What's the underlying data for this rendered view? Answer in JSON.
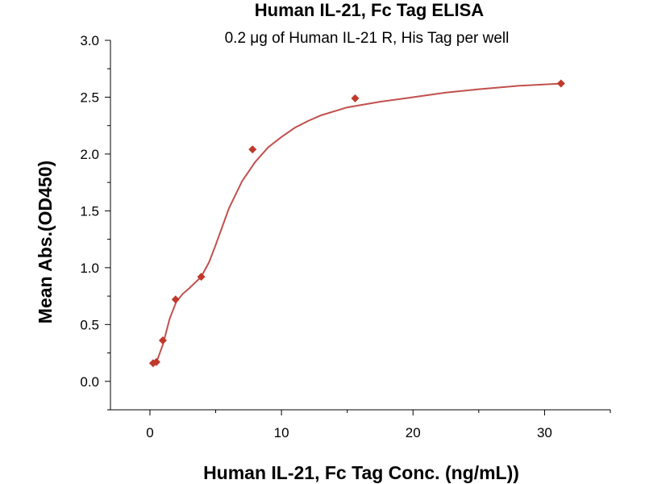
{
  "chart_data": {
    "type": "scatter",
    "title": "Human IL-21, Fc Tag ELISA",
    "subtitle": "0.2 μg of Human IL-21 R, His Tag per well",
    "xlabel": "Human IL-21, Fc Tag Conc. (ng/mL))",
    "ylabel": "Mean Abs.(OD450)",
    "xlim": [
      -3,
      35
    ],
    "ylim": [
      -0.25,
      3.0
    ],
    "x_ticks": [
      0,
      10,
      20,
      30
    ],
    "y_ticks": [
      0.0,
      0.5,
      1.0,
      1.5,
      2.0,
      2.5,
      3.0
    ],
    "x_tick_labels": [
      "0",
      "10",
      "20",
      "30"
    ],
    "y_tick_labels": [
      "0.0",
      "0.5",
      "1.0",
      "1.5",
      "2.0",
      "2.5",
      "3.0"
    ],
    "grid": false,
    "legend": "none",
    "marker_color": "#c0392b",
    "curve_color": "#c0504d",
    "series": [
      {
        "points": [
          {
            "x": 0.24,
            "y": 0.16
          },
          {
            "x": 0.49,
            "y": 0.17
          },
          {
            "x": 0.98,
            "y": 0.36
          },
          {
            "x": 1.95,
            "y": 0.72
          },
          {
            "x": 3.9,
            "y": 0.92
          },
          {
            "x": 7.8,
            "y": 2.04
          },
          {
            "x": 15.6,
            "y": 2.49
          },
          {
            "x": 31.25,
            "y": 2.62
          }
        ]
      }
    ],
    "fit_curve": [
      {
        "x": 0.24,
        "y": 0.15
      },
      {
        "x": 0.6,
        "y": 0.2
      },
      {
        "x": 1.0,
        "y": 0.33
      },
      {
        "x": 1.5,
        "y": 0.55
      },
      {
        "x": 2.0,
        "y": 0.7
      },
      {
        "x": 2.5,
        "y": 0.77
      },
      {
        "x": 3.0,
        "y": 0.82
      },
      {
        "x": 3.9,
        "y": 0.92
      },
      {
        "x": 4.5,
        "y": 1.05
      },
      {
        "x": 5.0,
        "y": 1.2
      },
      {
        "x": 5.5,
        "y": 1.36
      },
      {
        "x": 6.0,
        "y": 1.52
      },
      {
        "x": 7.0,
        "y": 1.76
      },
      {
        "x": 8.0,
        "y": 1.93
      },
      {
        "x": 9.0,
        "y": 2.06
      },
      {
        "x": 10.0,
        "y": 2.15
      },
      {
        "x": 11.0,
        "y": 2.23
      },
      {
        "x": 12.0,
        "y": 2.29
      },
      {
        "x": 13.0,
        "y": 2.34
      },
      {
        "x": 15.0,
        "y": 2.41
      },
      {
        "x": 17.5,
        "y": 2.46
      },
      {
        "x": 20.0,
        "y": 2.5
      },
      {
        "x": 22.5,
        "y": 2.54
      },
      {
        "x": 25.0,
        "y": 2.57
      },
      {
        "x": 28.0,
        "y": 2.6
      },
      {
        "x": 31.25,
        "y": 2.62
      }
    ]
  }
}
